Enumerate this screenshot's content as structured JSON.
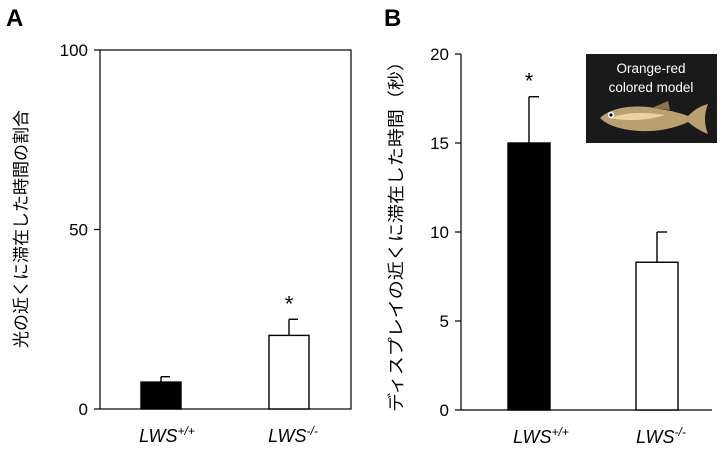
{
  "chart_data": [
    {
      "panel": "A",
      "type": "bar",
      "categories": [
        "LWS+/+",
        "LWS-/-"
      ],
      "category_parts": [
        {
          "base": "LWS",
          "sup": "+/+"
        },
        {
          "base": "LWS",
          "sup": "-/-"
        }
      ],
      "values": [
        7.5,
        20.5
      ],
      "errors": [
        1.5,
        4.5
      ],
      "bar_colors": [
        "#000000",
        "#ffffff"
      ],
      "significance": [
        "",
        "*"
      ],
      "ylabel": "光の近くに滞在した時間の割合",
      "ylim": [
        0,
        100
      ],
      "yticks": [
        0,
        50,
        100
      ],
      "box": true
    },
    {
      "panel": "B",
      "type": "bar",
      "categories": [
        "LWS+/+",
        "LWS-/-"
      ],
      "category_parts": [
        {
          "base": "LWS",
          "sup": "+/+"
        },
        {
          "base": "LWS",
          "sup": "-/-"
        }
      ],
      "values": [
        15.0,
        8.3
      ],
      "errors": [
        2.6,
        1.7
      ],
      "bar_colors": [
        "#000000",
        "#ffffff"
      ],
      "significance": [
        "*",
        ""
      ],
      "ylabel": "ディスプレイの近くに滞在した時間（秒）",
      "ylim": [
        0,
        20
      ],
      "yticks": [
        0,
        5,
        10,
        15,
        20
      ],
      "box": false,
      "inset": {
        "lines": [
          "Orange-red",
          "colored model"
        ],
        "background": "#1a1a1a",
        "fish_icon": "medaka-fish-icon"
      }
    }
  ]
}
